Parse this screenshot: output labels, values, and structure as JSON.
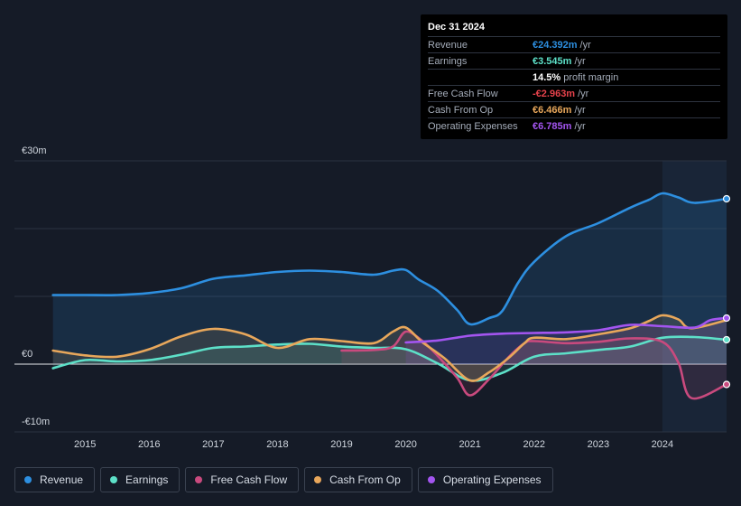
{
  "tooltip": {
    "date": "Dec 31 2024",
    "rows": [
      {
        "label": "Revenue",
        "value": "€24.392m",
        "unit": "/yr",
        "color": "#2d8fe0"
      },
      {
        "label": "Earnings",
        "value": "€3.545m",
        "unit": "/yr",
        "color": "#5de0c8"
      },
      {
        "label": "",
        "value": "14.5%",
        "unit": "profit margin",
        "color": "#ffffff"
      },
      {
        "label": "Free Cash Flow",
        "value": "-€2.963m",
        "unit": "/yr",
        "color": "#e5424b"
      },
      {
        "label": "Cash From Op",
        "value": "€6.466m",
        "unit": "/yr",
        "color": "#e8a75b"
      },
      {
        "label": "Operating Expenses",
        "value": "€6.785m",
        "unit": "/yr",
        "color": "#a355f0"
      }
    ]
  },
  "legend": [
    {
      "label": "Revenue",
      "color": "#2d8fe0"
    },
    {
      "label": "Earnings",
      "color": "#5de0c8"
    },
    {
      "label": "Free Cash Flow",
      "color": "#c94a7e"
    },
    {
      "label": "Cash From Op",
      "color": "#e8a75b"
    },
    {
      "label": "Operating Expenses",
      "color": "#a355f0"
    }
  ],
  "chart_data": {
    "type": "area",
    "title": "",
    "y_tick_labels": [
      "€30m",
      "€0",
      "-€10m"
    ],
    "y_ticks": [
      30,
      0,
      -10
    ],
    "ylim": [
      -10,
      30
    ],
    "xlim": [
      2014.35,
      2025.0
    ],
    "x_ticks": [
      2015,
      2016,
      2017,
      2018,
      2019,
      2020,
      2021,
      2022,
      2023,
      2024
    ],
    "x_tick_labels": [
      "2015",
      "2016",
      "2017",
      "2018",
      "2019",
      "2020",
      "2021",
      "2022",
      "2023",
      "2024"
    ],
    "highlight_from": 2024.0,
    "series": [
      {
        "name": "Revenue",
        "color": "#2d8fe0",
        "end_marker": true,
        "x": [
          2014.5,
          2015.0,
          2015.5,
          2016.0,
          2016.5,
          2017.0,
          2017.5,
          2018.0,
          2018.5,
          2019.0,
          2019.5,
          2019.8,
          2020.0,
          2020.2,
          2020.5,
          2020.8,
          2021.0,
          2021.3,
          2021.5,
          2021.75,
          2022.0,
          2022.5,
          2023.0,
          2023.5,
          2023.8,
          2024.0,
          2024.25,
          2024.5,
          2025.0
        ],
        "values": [
          10.2,
          10.2,
          10.2,
          10.5,
          11.2,
          12.6,
          13.1,
          13.6,
          13.8,
          13.6,
          13.2,
          13.8,
          13.9,
          12.5,
          10.8,
          8.0,
          5.9,
          6.8,
          7.8,
          12.0,
          15.1,
          18.9,
          20.8,
          23.1,
          24.3,
          25.2,
          24.6,
          23.8,
          24.4
        ]
      },
      {
        "name": "Earnings",
        "color": "#5de0c8",
        "end_marker": true,
        "x": [
          2014.5,
          2015.0,
          2015.5,
          2016.0,
          2016.5,
          2017.0,
          2017.5,
          2018.0,
          2018.5,
          2019.0,
          2019.5,
          2020.0,
          2020.5,
          2021.0,
          2021.5,
          2022.0,
          2022.5,
          2023.0,
          2023.5,
          2024.0,
          2024.5,
          2025.0
        ],
        "values": [
          -0.6,
          0.6,
          0.4,
          0.6,
          1.4,
          2.4,
          2.6,
          2.9,
          3.0,
          2.6,
          2.4,
          2.2,
          0.1,
          -2.4,
          -1.3,
          1.1,
          1.6,
          2.1,
          2.6,
          3.9,
          4.0,
          3.6
        ]
      },
      {
        "name": "Free Cash Flow",
        "color": "#c94a7e",
        "end_marker": true,
        "x": [
          2019.0,
          2019.5,
          2019.8,
          2020.0,
          2020.25,
          2020.5,
          2020.8,
          2021.0,
          2021.3,
          2021.6,
          2021.85,
          2022.0,
          2022.5,
          2023.0,
          2023.5,
          2024.0,
          2024.25,
          2024.45,
          2025.0
        ],
        "values": [
          2.0,
          2.1,
          2.6,
          4.8,
          3.5,
          1.2,
          -2.0,
          -4.6,
          -2.2,
          1.0,
          3.1,
          3.4,
          3.1,
          3.3,
          3.8,
          3.3,
          0.2,
          -5.0,
          -3.0
        ]
      },
      {
        "name": "Cash From Op",
        "color": "#e8a75b",
        "end_marker": false,
        "x": [
          2014.5,
          2015.0,
          2015.5,
          2016.0,
          2016.5,
          2017.0,
          2017.5,
          2018.0,
          2018.5,
          2019.0,
          2019.5,
          2019.8,
          2020.0,
          2020.25,
          2020.6,
          2021.0,
          2021.3,
          2021.6,
          2021.85,
          2022.0,
          2022.5,
          2023.0,
          2023.5,
          2023.8,
          2024.0,
          2024.25,
          2024.45,
          2025.0
        ],
        "values": [
          2.0,
          1.3,
          1.1,
          2.2,
          4.1,
          5.2,
          4.4,
          2.4,
          3.7,
          3.4,
          3.1,
          4.8,
          5.4,
          3.3,
          0.9,
          -2.4,
          -1.2,
          0.9,
          3.1,
          3.9,
          3.7,
          4.4,
          5.3,
          6.4,
          7.2,
          6.6,
          5.3,
          6.5
        ]
      },
      {
        "name": "Operating Expenses",
        "color": "#a355f0",
        "end_marker": true,
        "x": [
          2020.0,
          2020.5,
          2021.0,
          2021.5,
          2022.0,
          2022.5,
          2023.0,
          2023.5,
          2024.0,
          2024.5,
          2024.75,
          2025.0
        ],
        "values": [
          3.2,
          3.5,
          4.2,
          4.5,
          4.6,
          4.7,
          5.0,
          5.8,
          5.6,
          5.4,
          6.5,
          6.8
        ]
      }
    ]
  }
}
